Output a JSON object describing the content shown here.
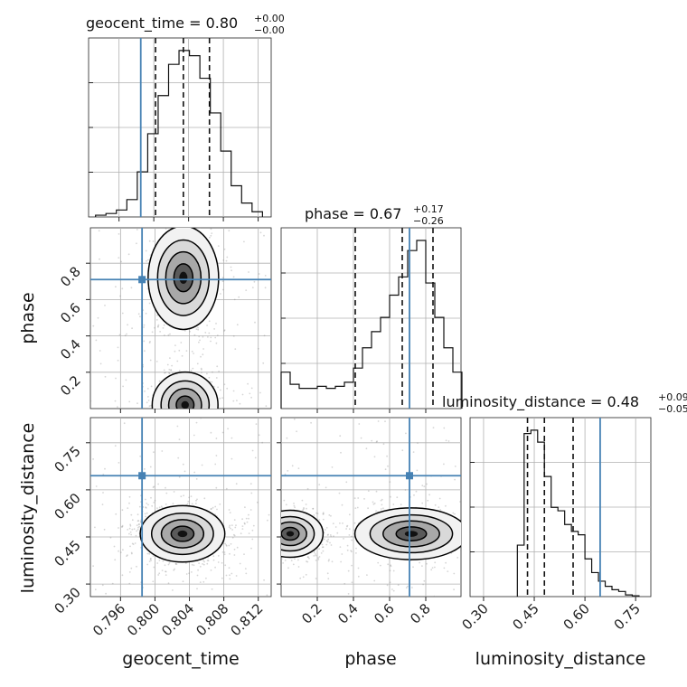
{
  "chart_data": {
    "type": "corner",
    "parameters": [
      "geocent_time",
      "phase",
      "luminosity_distance"
    ],
    "truth_color": "#4682b4",
    "truths": {
      "geocent_time": 0.7985,
      "phase": 0.71,
      "luminosity_distance": 0.645
    },
    "panels": {
      "geocent_time": {
        "title_prefix": "geocent_time = 0.80",
        "err_plus": "+0.00",
        "err_minus": "−0.00",
        "xlim": [
          0.7925,
          0.8135
        ],
        "quantiles": [
          0.8002,
          0.8034,
          0.8064
        ],
        "hist": {
          "bins": [
            0.7933,
            0.7945,
            0.7957,
            0.7969,
            0.7981,
            0.7993,
            0.8005,
            0.8017,
            0.8029,
            0.8041,
            0.8053,
            0.8065,
            0.8077,
            0.8089,
            0.8101,
            0.8113,
            0.8125
          ],
          "counts": [
            0.01,
            0.02,
            0.04,
            0.1,
            0.26,
            0.48,
            0.7,
            0.88,
            0.96,
            0.93,
            0.8,
            0.6,
            0.38,
            0.18,
            0.08,
            0.03
          ]
        }
      },
      "phase": {
        "title_prefix": "phase = 0.67",
        "err_plus": "+0.17",
        "err_minus": "−0.26",
        "xlim": [
          0.0,
          0.995
        ],
        "quantiles": [
          0.41,
          0.67,
          0.84
        ],
        "hist": {
          "bins": [
            0.0,
            0.05,
            0.1,
            0.15,
            0.2,
            0.25,
            0.3,
            0.35,
            0.4,
            0.45,
            0.5,
            0.55,
            0.6,
            0.65,
            0.7,
            0.75,
            0.8,
            0.85,
            0.9,
            0.95,
            1.0
          ],
          "counts": [
            0.18,
            0.12,
            0.1,
            0.1,
            0.11,
            0.1,
            0.11,
            0.13,
            0.2,
            0.3,
            0.38,
            0.45,
            0.56,
            0.65,
            0.78,
            0.83,
            0.62,
            0.45,
            0.3,
            0.18
          ]
        }
      },
      "luminosity_distance": {
        "title_prefix": "luminosity_distance = 0.48",
        "err_plus": "+0.09",
        "err_minus": "−0.05",
        "xlim": [
          0.26,
          0.795
        ],
        "quantiles": [
          0.43,
          0.48,
          0.565
        ],
        "hist": {
          "bins": [
            0.4,
            0.42,
            0.44,
            0.46,
            0.48,
            0.5,
            0.52,
            0.54,
            0.56,
            0.58,
            0.6,
            0.62,
            0.64,
            0.66,
            0.68,
            0.7,
            0.72,
            0.74,
            0.76
          ],
          "counts": [
            0.3,
            0.95,
            0.97,
            0.9,
            0.7,
            0.52,
            0.5,
            0.42,
            0.38,
            0.36,
            0.22,
            0.14,
            0.09,
            0.06,
            0.04,
            0.03,
            0.01,
            0.005
          ]
        }
      }
    },
    "joint": {
      "phase_vs_geocent_time": {
        "x": "geocent_time",
        "y": "phase",
        "xlim": [
          0.7925,
          0.8135
        ],
        "ylim": [
          0.0,
          0.995
        ]
      },
      "luminosity_distance_vs_geocent_time": {
        "x": "geocent_time",
        "y": "luminosity_distance",
        "xlim": [
          0.7925,
          0.8135
        ],
        "ylim": [
          0.26,
          0.83
        ]
      },
      "luminosity_distance_vs_phase": {
        "x": "phase",
        "y": "luminosity_distance",
        "xlim": [
          0.0,
          0.995
        ],
        "ylim": [
          0.26,
          0.83
        ]
      }
    },
    "ticks": {
      "geocent_time": [
        "0.796",
        "0.800",
        "0.804",
        "0.808",
        "0.812"
      ],
      "phase": [
        "0.2",
        "0.4",
        "0.6",
        "0.8"
      ],
      "luminosity_distance": [
        "0.30",
        "0.45",
        "0.60",
        "0.75"
      ]
    },
    "tick_values": {
      "geocent_time": [
        0.796,
        0.8,
        0.804,
        0.808,
        0.812
      ],
      "phase": [
        0.2,
        0.4,
        0.6,
        0.8
      ],
      "luminosity_distance": [
        0.3,
        0.45,
        0.6,
        0.75
      ]
    },
    "axis_labels": {
      "geocent_time": "geocent_time",
      "phase": "phase",
      "luminosity_distance": "luminosity_distance"
    },
    "grid": true
  }
}
